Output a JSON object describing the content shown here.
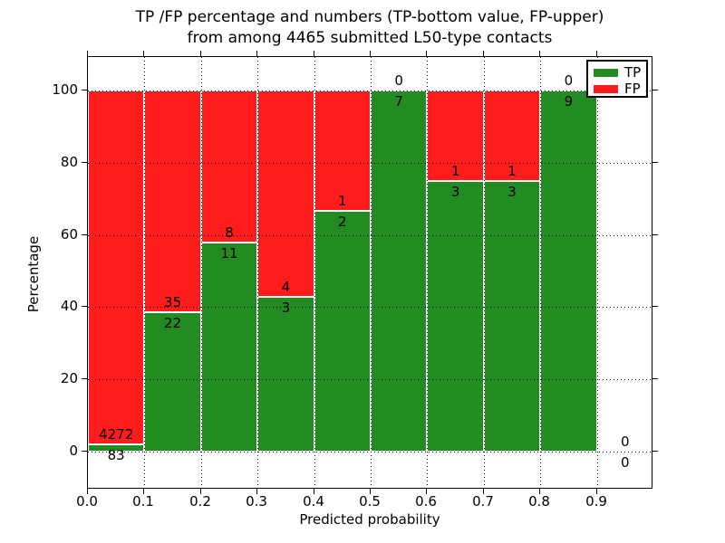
{
  "title": {
    "line1": "TP /FP percentage and numbers (TP-bottom value, FP-upper)",
    "line2": "from among 4465 submitted L50-type contacts"
  },
  "colors": {
    "tp": "#228b22",
    "fp": "#fd1d1d",
    "background": "#ffffff",
    "text": "#000000"
  },
  "chart_data": {
    "type": "bar",
    "stacked": true,
    "title": "TP /FP percentage and numbers (TP-bottom value, FP-upper) from among 4465 submitted L50-type contacts",
    "xlabel": "Predicted probability",
    "ylabel": "Percentage",
    "x_tick_labels": [
      "0.0",
      "0.1",
      "0.2",
      "0.3",
      "0.4",
      "0.5",
      "0.6",
      "0.7",
      "0.8",
      "0.9"
    ],
    "y_tick_labels": [
      "0",
      "20",
      "40",
      "60",
      "80",
      "100"
    ],
    "y_ticks": [
      0,
      20,
      40,
      60,
      80,
      100
    ],
    "xlim": [
      0.0,
      1.0
    ],
    "ylim": [
      -10.5,
      107.5
    ],
    "grid": "dotted, drawn above bars",
    "bin_width": 0.1,
    "total_contacts": 4465,
    "legend": {
      "position": "upper right",
      "entries": [
        {
          "label": "TP",
          "color": "#228b22"
        },
        {
          "label": "FP",
          "color": "#fd1d1d"
        }
      ]
    },
    "bins": [
      {
        "x0": 0.0,
        "x1": 0.1,
        "tp_count": 83,
        "fp_count": 4272,
        "tp_pct": 1.9,
        "fp_pct": 98.1
      },
      {
        "x0": 0.1,
        "x1": 0.2,
        "tp_count": 22,
        "fp_count": 35,
        "tp_pct": 38.6,
        "fp_pct": 61.4
      },
      {
        "x0": 0.2,
        "x1": 0.3,
        "tp_count": 11,
        "fp_count": 8,
        "tp_pct": 57.9,
        "fp_pct": 42.1
      },
      {
        "x0": 0.3,
        "x1": 0.4,
        "tp_count": 3,
        "fp_count": 4,
        "tp_pct": 42.9,
        "fp_pct": 57.1
      },
      {
        "x0": 0.4,
        "x1": 0.5,
        "tp_count": 2,
        "fp_count": 1,
        "tp_pct": 66.7,
        "fp_pct": 33.3
      },
      {
        "x0": 0.5,
        "x1": 0.6,
        "tp_count": 7,
        "fp_count": 0,
        "tp_pct": 100,
        "fp_pct": 0
      },
      {
        "x0": 0.6,
        "x1": 0.7,
        "tp_count": 3,
        "fp_count": 1,
        "tp_pct": 75,
        "fp_pct": 25
      },
      {
        "x0": 0.7,
        "x1": 0.8,
        "tp_count": 3,
        "fp_count": 1,
        "tp_pct": 75,
        "fp_pct": 25
      },
      {
        "x0": 0.8,
        "x1": 0.9,
        "tp_count": 9,
        "fp_count": 0,
        "tp_pct": 100,
        "fp_pct": 0
      },
      {
        "x0": 0.9,
        "x1": 1.0,
        "tp_count": 0,
        "fp_count": 0,
        "tp_pct": 0,
        "fp_pct": 0
      }
    ]
  }
}
